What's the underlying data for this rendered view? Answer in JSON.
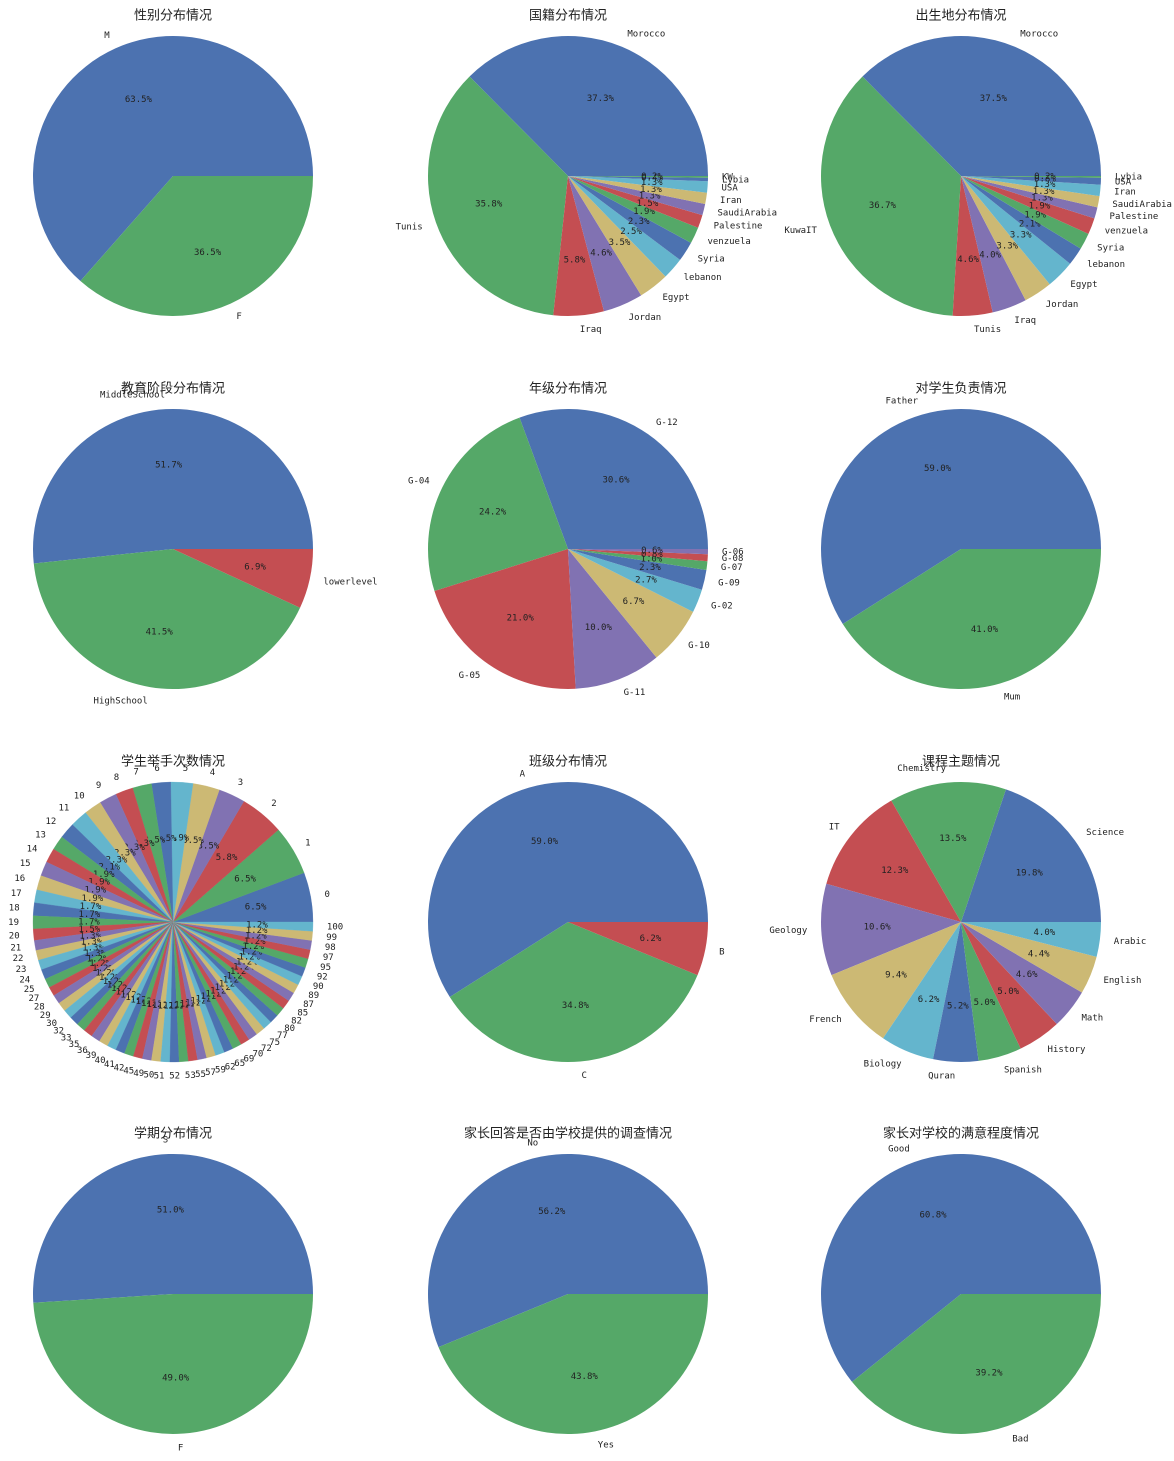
{
  "colors": [
    "#4c72b0",
    "#55a868",
    "#c44e52",
    "#8172b2",
    "#ccb974",
    "#64b5cd"
  ],
  "chart_data": [
    {
      "type": "pie",
      "title": "性别分布情况",
      "labels": [
        "M",
        "F"
      ],
      "values": [
        63.5,
        36.5
      ]
    },
    {
      "type": "pie",
      "title": "国籍分布情况",
      "labels": [
        "Morocco",
        "Tunis",
        "Iraq",
        "Jordan",
        "Egypt",
        "lebanon",
        "Syria",
        "venzuela",
        "Palestine",
        "SaudiArabia",
        "Iran",
        "USA",
        "Lybia",
        "KW"
      ],
      "values": [
        37.3,
        35.8,
        5.8,
        4.6,
        3.5,
        2.5,
        2.3,
        1.9,
        1.5,
        1.3,
        1.3,
        1.3,
        0.4,
        0.2
      ]
    },
    {
      "type": "pie",
      "title": "出生地分布情况",
      "labels": [
        "Morocco",
        "KuwaIT",
        "Tunis",
        "Iraq",
        "Jordan",
        "Egypt",
        "lebanon",
        "Syria",
        "venzuela",
        "Palestine",
        "SaudiArabia",
        "Iran",
        "USA",
        "Lybia"
      ],
      "values": [
        37.5,
        36.7,
        4.6,
        4.0,
        3.3,
        3.3,
        2.1,
        1.9,
        1.9,
        1.3,
        1.3,
        1.3,
        0.8,
        0.2
      ]
    },
    {
      "type": "pie",
      "title": "教育阶段分布情况",
      "labels": [
        "MiddleSchool",
        "HighSchool",
        "lowerlevel"
      ],
      "values": [
        51.7,
        41.5,
        6.9
      ]
    },
    {
      "type": "pie",
      "title": "年级分布情况",
      "labels": [
        "G-12",
        "G-04",
        "G-05",
        "G-11",
        "G-10",
        "G-02",
        "G-09",
        "G-07",
        "G-08",
        "G-06"
      ],
      "values": [
        30.6,
        24.2,
        21.0,
        10.0,
        6.7,
        2.7,
        2.3,
        1.0,
        0.8,
        0.6
      ]
    },
    {
      "type": "pie",
      "title": "对学生负责情况",
      "labels": [
        "Father",
        "Mum"
      ],
      "values": [
        59.0,
        41.0
      ]
    },
    {
      "type": "pie",
      "title": "学生举手次数情况",
      "labels": [
        "0",
        "1",
        "2",
        "3",
        "4",
        "5",
        "6",
        "7",
        "8",
        "9",
        "10",
        "11",
        "12",
        "13",
        "14",
        "15",
        "16",
        "17",
        "18",
        "19",
        "20",
        "21",
        "22",
        "23",
        "24",
        "25",
        "27",
        "28",
        "29",
        "30",
        "32",
        "33",
        "35",
        "36",
        "39",
        "40",
        "41",
        "42",
        "45",
        "49",
        "50",
        "51",
        "52",
        "53",
        "55",
        "57",
        "59",
        "62",
        "65",
        "69",
        "70",
        "72",
        "75",
        "77",
        "80",
        "82",
        "85",
        "87",
        "89",
        "90",
        "92",
        "95",
        "97",
        "98",
        "99",
        "100"
      ],
      "values": [
        6.5,
        6.5,
        5.8,
        3.5,
        3.5,
        2.9,
        2.5,
        2.5,
        2.3,
        2.3,
        2.3,
        2.3,
        2.1,
        1.9,
        1.9,
        1.9,
        1.9,
        1.7,
        1.7,
        1.7,
        1.5,
        1.3,
        1.3,
        1.3,
        1.3,
        1.2,
        1.2,
        1.2,
        1.2,
        1.2,
        1.2,
        1.2,
        1.2,
        1.2,
        1.2,
        1.2,
        1.2,
        1.2,
        1.2,
        1.2,
        1.2,
        1.2,
        1.2,
        1.2,
        1.2,
        1.2,
        1.2,
        1.2,
        1.2,
        1.2,
        1.2,
        1.2,
        1.2,
        1.2,
        1.2,
        1.2,
        1.2,
        1.2,
        1.2,
        1.2,
        1.2,
        1.2,
        1.2,
        1.2,
        1.2,
        1.2
      ]
    },
    {
      "type": "pie",
      "title": "班级分布情况",
      "labels": [
        "A",
        "C",
        "B"
      ],
      "values": [
        59.0,
        34.8,
        6.2
      ]
    },
    {
      "type": "pie",
      "title": "课程主题情况",
      "labels": [
        "Science",
        "Chemistry",
        "IT",
        "Geology",
        "French",
        "Biology",
        "Quran",
        "Spanish",
        "History",
        "Math",
        "English",
        "Arabic"
      ],
      "values": [
        19.8,
        13.5,
        12.3,
        10.6,
        9.4,
        6.2,
        5.2,
        5.0,
        5.0,
        4.6,
        4.4,
        4.0
      ]
    },
    {
      "type": "pie",
      "title": "学期分布情况",
      "labels": [
        "S",
        "F"
      ],
      "values": [
        51.0,
        49.0
      ]
    },
    {
      "type": "pie",
      "title": "家长回答是否由学校提供的调查情况",
      "labels": [
        "No",
        "Yes"
      ],
      "values": [
        56.2,
        43.8
      ]
    },
    {
      "type": "pie",
      "title": "家长对学校的满意程度情况",
      "labels": [
        "Good",
        "Bad"
      ],
      "values": [
        60.8,
        39.2
      ]
    }
  ]
}
